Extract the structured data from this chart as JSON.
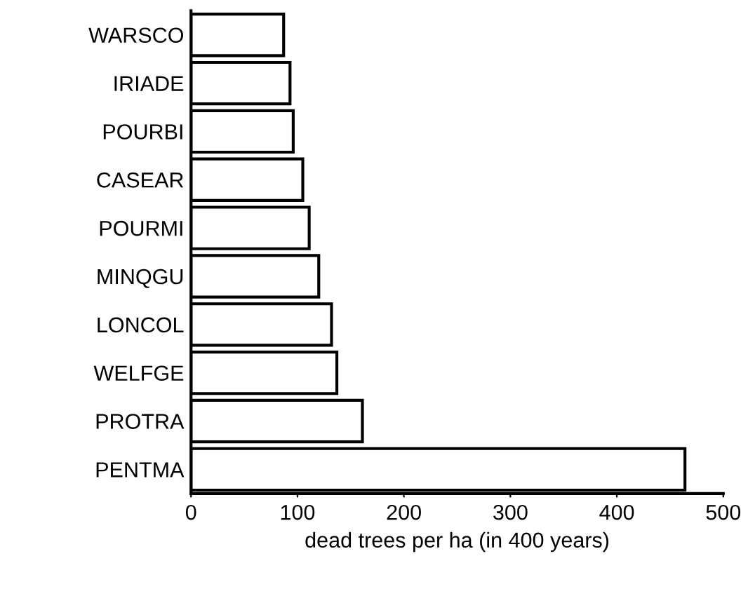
{
  "chart_data": {
    "type": "bar",
    "orientation": "horizontal",
    "xlabel": "dead trees per ha (in 400 years)",
    "categories": [
      "WARSCO",
      "IRIADE",
      "POURBI",
      "CASEAR",
      "POURMI",
      "MINQGU",
      "LONCOL",
      "WELFGE",
      "PROTRA",
      "PENTMA"
    ],
    "values": [
      87,
      93,
      96,
      105,
      111,
      120,
      132,
      137,
      161,
      464
    ],
    "color": "#ffffff",
    "xlim": [
      0,
      500
    ],
    "xticks": [
      0,
      100,
      200,
      300,
      400,
      500
    ],
    "grid": false,
    "legend": false
  }
}
